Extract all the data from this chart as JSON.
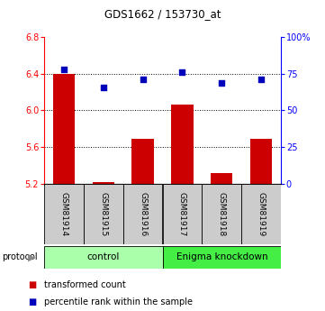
{
  "title": "GDS1662 / 153730_at",
  "samples": [
    "GSM81914",
    "GSM81915",
    "GSM81916",
    "GSM81917",
    "GSM81918",
    "GSM81919"
  ],
  "bar_values": [
    6.4,
    5.22,
    5.69,
    6.06,
    5.31,
    5.69
  ],
  "dot_values": [
    78,
    66,
    71,
    76,
    69,
    71
  ],
  "ylim_left": [
    5.2,
    6.8
  ],
  "ylim_right": [
    0,
    100
  ],
  "yticks_left": [
    5.2,
    5.6,
    6.0,
    6.4,
    6.8
  ],
  "yticks_right": [
    0,
    25,
    50,
    75,
    100
  ],
  "bar_color": "#cc0000",
  "dot_color": "#0000bb",
  "bar_width": 0.55,
  "groups": [
    {
      "label": "control",
      "color": "#aaffaa"
    },
    {
      "label": "Enigma knockdown",
      "color": "#44ee44"
    }
  ],
  "protocol_label": "protocol",
  "legend_items": [
    {
      "label": "transformed count",
      "color": "#cc0000"
    },
    {
      "label": "percentile rank within the sample",
      "color": "#0000bb"
    }
  ],
  "label_area_color": "#cccccc",
  "title_fontsize": 8.5
}
